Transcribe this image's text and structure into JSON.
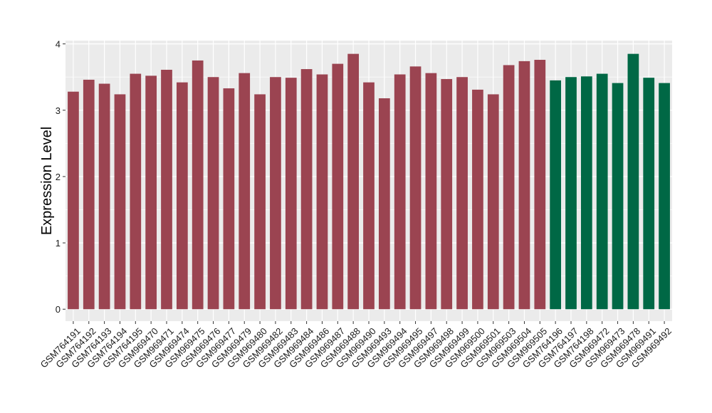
{
  "chart_data": {
    "type": "bar",
    "title": "",
    "xlabel": "",
    "ylabel": "Expression Level",
    "ylim": [
      -0.18,
      4.05
    ],
    "yticks": [
      0,
      1,
      2,
      3,
      4
    ],
    "grid": true,
    "categories": [
      "GSM764191",
      "GSM764192",
      "GSM764193",
      "GSM764194",
      "GSM764195",
      "GSM969470",
      "GSM969471",
      "GSM969474",
      "GSM969475",
      "GSM969476",
      "GSM969477",
      "GSM969479",
      "GSM969480",
      "GSM969482",
      "GSM969483",
      "GSM969484",
      "GSM969486",
      "GSM969487",
      "GSM969488",
      "GSM969490",
      "GSM969493",
      "GSM969494",
      "GSM969495",
      "GSM969497",
      "GSM969498",
      "GSM969499",
      "GSM969500",
      "GSM969501",
      "GSM969503",
      "GSM969504",
      "GSM969505",
      "GSM764196",
      "GSM764197",
      "GSM764198",
      "GSM969472",
      "GSM969473",
      "GSM969478",
      "GSM969491",
      "GSM969492"
    ],
    "values": [
      3.28,
      3.46,
      3.4,
      3.24,
      3.55,
      3.52,
      3.61,
      3.42,
      3.75,
      3.5,
      3.33,
      3.56,
      3.24,
      3.5,
      3.49,
      3.62,
      3.54,
      3.7,
      3.85,
      3.42,
      3.18,
      3.54,
      3.66,
      3.56,
      3.47,
      3.5,
      3.31,
      3.24,
      3.68,
      3.74,
      3.76,
      3.45,
      3.5,
      3.51,
      3.55,
      3.41,
      3.85,
      3.49,
      3.41
    ],
    "groups": [
      0,
      0,
      0,
      0,
      0,
      0,
      0,
      0,
      0,
      0,
      0,
      0,
      0,
      0,
      0,
      0,
      0,
      0,
      0,
      0,
      0,
      0,
      0,
      0,
      0,
      0,
      0,
      0,
      0,
      0,
      0,
      1,
      1,
      1,
      1,
      1,
      1,
      1,
      1
    ],
    "colors": {
      "group0": "#9b4451",
      "group1": "#006845",
      "panel": "#ebebeb",
      "grid": "#ffffff"
    }
  }
}
